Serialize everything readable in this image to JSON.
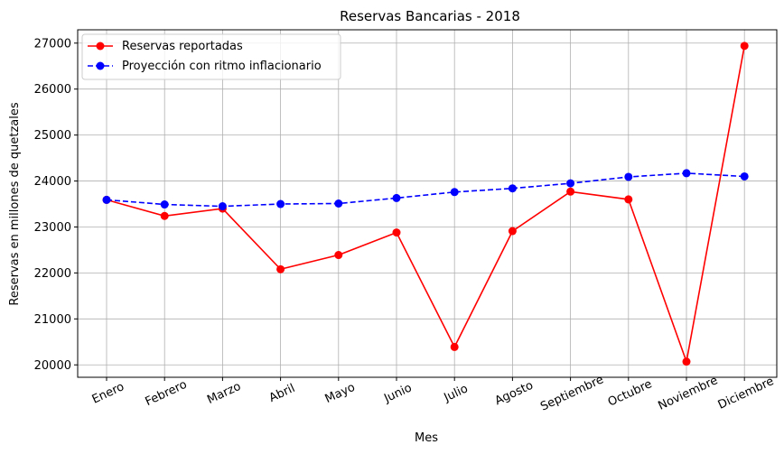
{
  "chart_data": {
    "type": "line",
    "title": "Reservas Bancarias - 2018",
    "xlabel": "Mes",
    "ylabel": "Reservas en millones de quetzales",
    "categories": [
      "Enero",
      "Febrero",
      "Marzo",
      "Abril",
      "Mayo",
      "Junio",
      "Julio",
      "Agosto",
      "Septiembre",
      "Octubre",
      "Noviembre",
      "Diciembre"
    ],
    "yticks": [
      20000,
      21000,
      22000,
      23000,
      24000,
      25000,
      26000,
      27000
    ],
    "ylim": [
      19730,
      27290
    ],
    "grid": true,
    "legend_position": "top-left",
    "series": [
      {
        "name": "Reservas reportadas",
        "color": "#ff0000",
        "linestyle": "solid",
        "marker": "circle",
        "values": [
          23590,
          23240,
          23400,
          22080,
          22390,
          22880,
          20390,
          22910,
          23770,
          23600,
          20070,
          26940
        ]
      },
      {
        "name": "Proyección con ritmo inflacionario",
        "color": "#0000ff",
        "linestyle": "dashed",
        "marker": "circle",
        "values": [
          23590,
          23490,
          23450,
          23500,
          23510,
          23630,
          23760,
          23840,
          23950,
          24090,
          24170,
          24100
        ]
      }
    ]
  }
}
